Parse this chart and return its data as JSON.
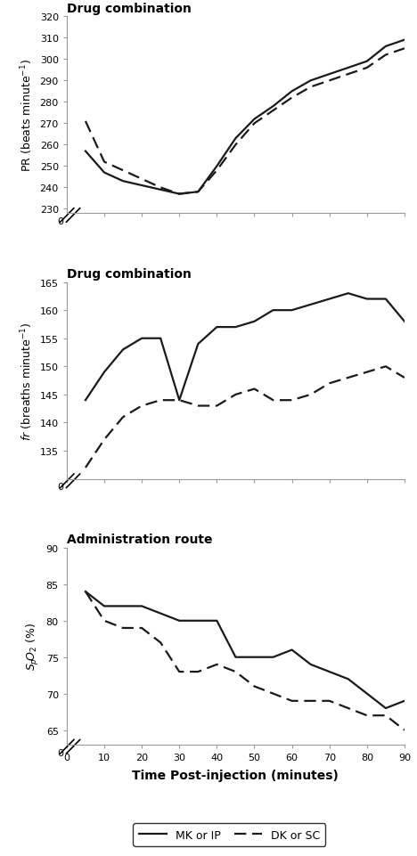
{
  "time": [
    5,
    10,
    15,
    20,
    25,
    30,
    35,
    40,
    45,
    50,
    55,
    60,
    65,
    70,
    75,
    80,
    85,
    90
  ],
  "pr_solid": [
    257,
    247,
    243,
    241,
    239,
    237,
    238,
    250,
    263,
    272,
    278,
    285,
    290,
    293,
    296,
    299,
    306,
    309
  ],
  "pr_dashed": [
    271,
    252,
    248,
    244,
    240,
    237,
    238,
    248,
    260,
    270,
    276,
    282,
    287,
    290,
    293,
    296,
    302,
    305
  ],
  "fr_solid": [
    144,
    149,
    153,
    155,
    155,
    144,
    154,
    157,
    157,
    158,
    160,
    160,
    161,
    162,
    163,
    162,
    162,
    158
  ],
  "fr_dashed": [
    132,
    137,
    141,
    143,
    144,
    144,
    143,
    143,
    145,
    146,
    144,
    144,
    145,
    147,
    148,
    149,
    150,
    148
  ],
  "spo2_solid": [
    84,
    82,
    82,
    82,
    81,
    80,
    80,
    80,
    75,
    75,
    75,
    76,
    74,
    73,
    72,
    70,
    68,
    69
  ],
  "spo2_dashed": [
    84,
    80,
    79,
    79,
    77,
    73,
    73,
    74,
    73,
    71,
    70,
    69,
    69,
    69,
    68,
    67,
    67,
    65
  ],
  "pr_ylim": [
    228,
    320
  ],
  "pr_yticks": [
    230,
    240,
    250,
    260,
    270,
    280,
    290,
    300,
    310,
    320
  ],
  "fr_ylim": [
    130,
    165
  ],
  "fr_yticks": [
    135,
    140,
    145,
    150,
    155,
    160,
    165
  ],
  "spo2_ylim": [
    63,
    90
  ],
  "spo2_yticks": [
    65,
    70,
    75,
    80,
    85,
    90
  ],
  "xlim": [
    0,
    90
  ],
  "xticks": [
    0,
    10,
    20,
    30,
    40,
    50,
    60,
    70,
    80,
    90
  ],
  "xlabel": "Time Post-injection (minutes)",
  "title1": "Drug combination",
  "title2": "Drug combination",
  "title3": "Administration route",
  "legend_solid": "MK or IP",
  "legend_dashed": "DK or SC",
  "line_color": "#1a1a1a",
  "line_width": 1.6
}
